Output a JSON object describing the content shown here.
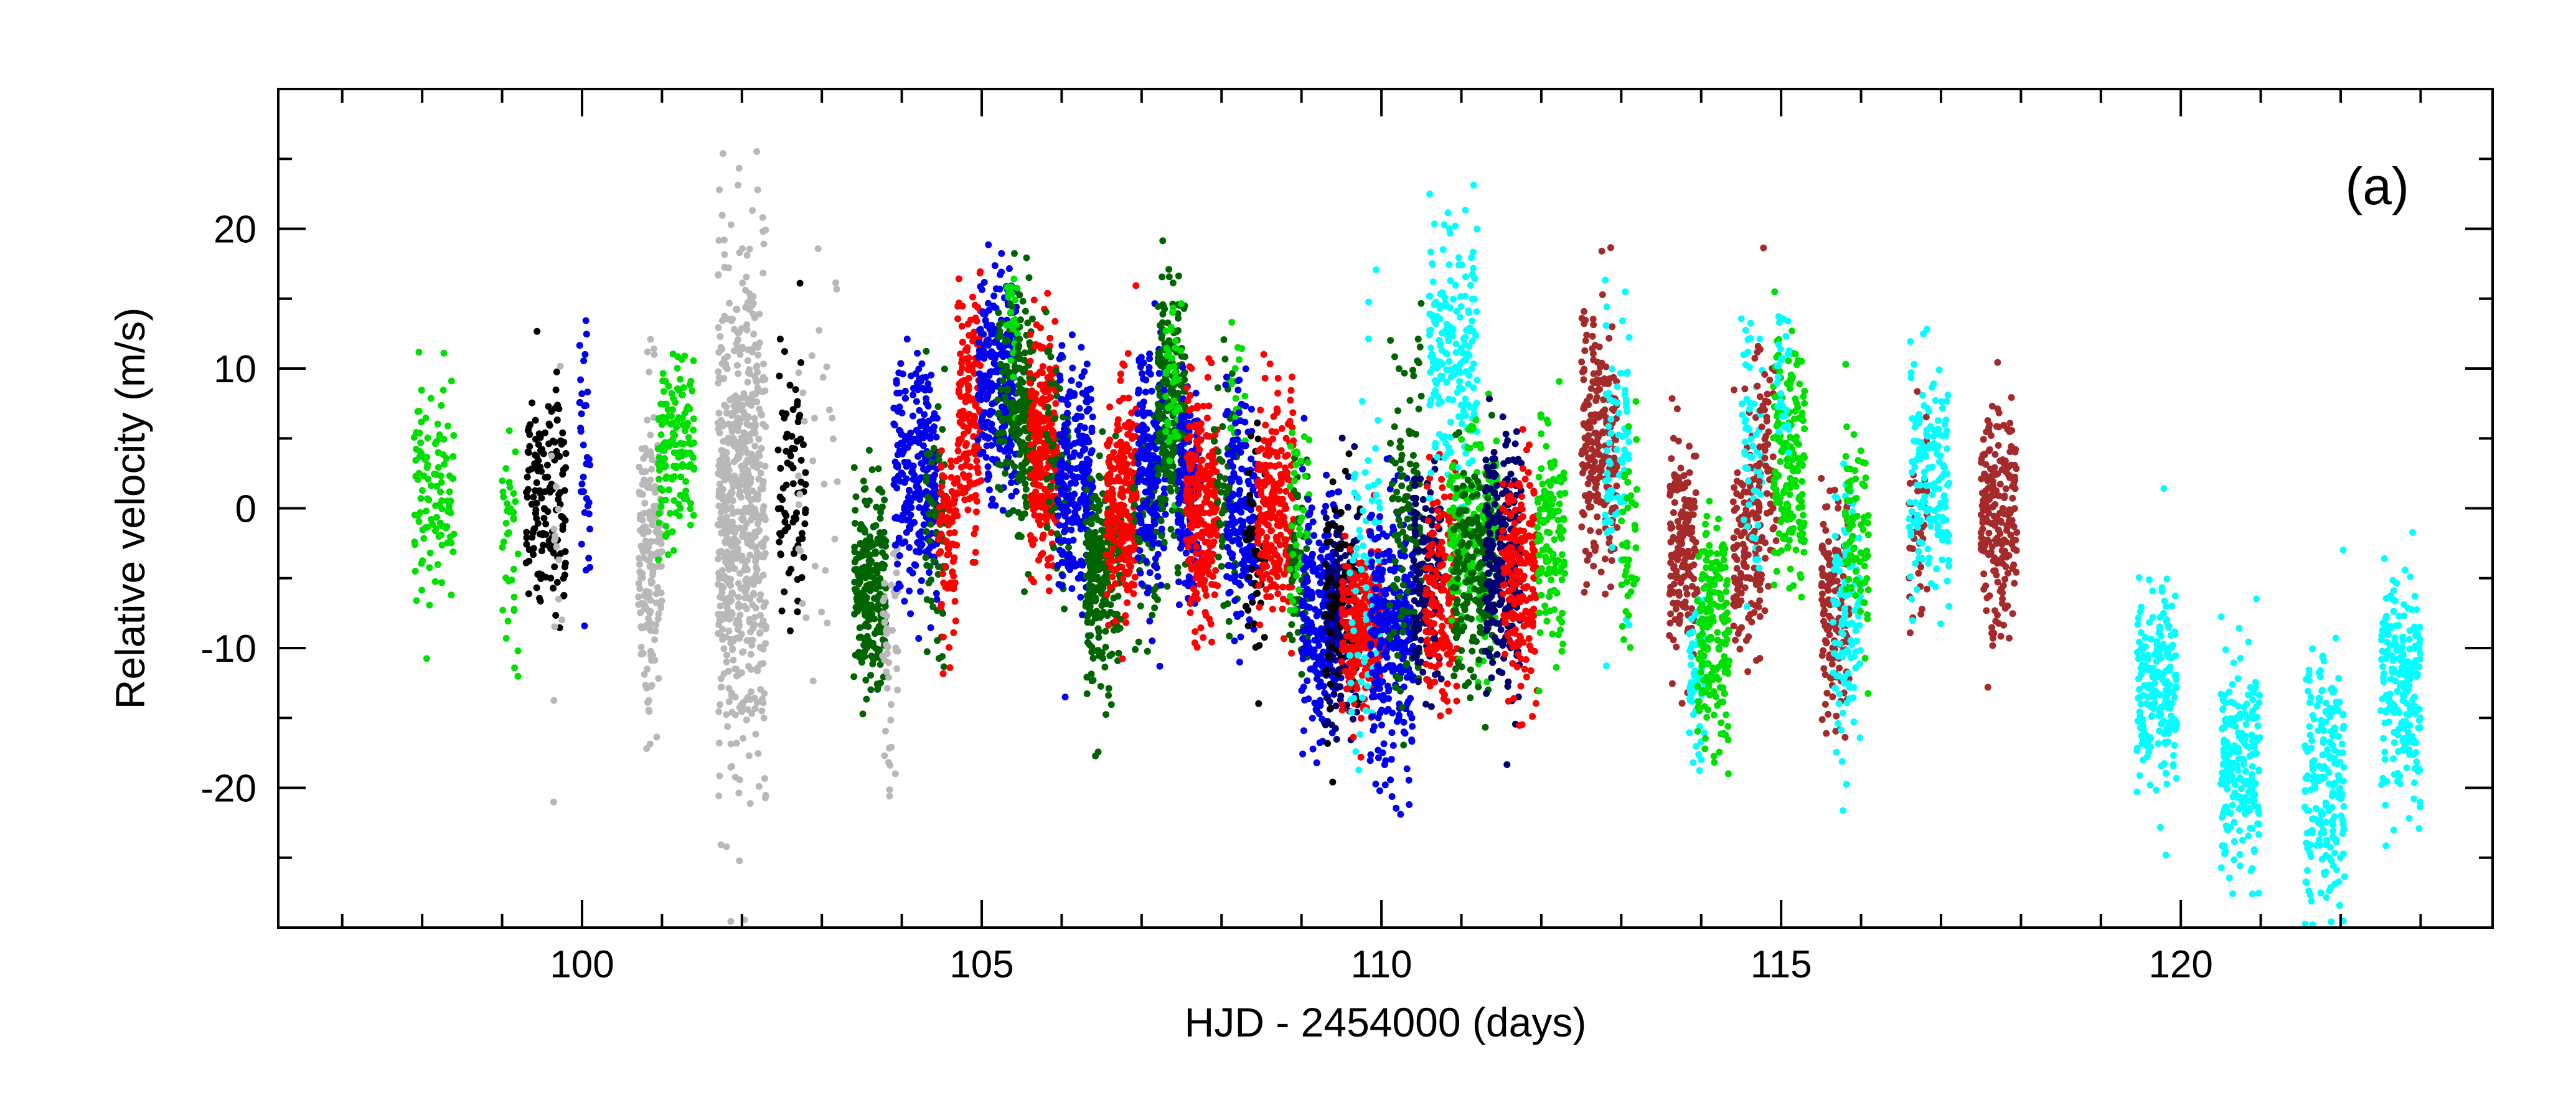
{
  "chart_data": {
    "type": "scatter",
    "xlabel": "HJD - 2454000 (days)",
    "ylabel": "Relative velocity (m/s)",
    "panel_label": "(a)",
    "xlim": [
      96.2,
      123.9
    ],
    "ylim": [
      -30,
      30
    ],
    "x_ticks": [
      100,
      105,
      110,
      115,
      120
    ],
    "x_tick_labels": [
      "100",
      "105",
      "110",
      "115",
      "120"
    ],
    "y_ticks": [
      -20,
      -10,
      0,
      10,
      20
    ],
    "y_tick_labels": [
      "-20",
      "-10",
      "0",
      "10",
      "20"
    ],
    "x_minor_step": 1,
    "y_minor_step": 5,
    "grid": false,
    "legend": "none",
    "colors": {
      "green": "#00e000",
      "black": "#000000",
      "blue": "#0000ee",
      "gray": "#b8b8b8",
      "darkgreen": "#006400",
      "red": "#ff0000",
      "navy": "#000070",
      "brown": "#a52a2a",
      "cyan": "#00ffff"
    },
    "clusters": [
      {
        "color": "green",
        "x": [
          97.9,
          98.4
        ],
        "mean": 1.5,
        "sd": 3.8,
        "n": 110
      },
      {
        "color": "green",
        "x": [
          99.0,
          99.2
        ],
        "mean": -2,
        "sd": 4.5,
        "n": 40
      },
      {
        "color": "black",
        "x": [
          99.3,
          99.8
        ],
        "mean": 0.5,
        "sd": 4.5,
        "n": 150
      },
      {
        "color": "gray",
        "x": [
          99.6,
          99.75
        ],
        "mean": -3,
        "sd": 8,
        "n": 15
      },
      {
        "color": "blue",
        "x": [
          99.95,
          100.1
        ],
        "mean": 3,
        "sd": 5,
        "n": 35
      },
      {
        "color": "gray",
        "x": [
          100.7,
          101.0
        ],
        "mean": -3,
        "sd": 5.5,
        "n": 180
      },
      {
        "color": "green",
        "x": [
          100.95,
          101.4
        ],
        "mean": 4.5,
        "sd": 3.5,
        "n": 150
      },
      {
        "color": "gray",
        "x": [
          101.7,
          102.3
        ],
        "mean": 0,
        "sd": 9,
        "n": 650
      },
      {
        "color": "black",
        "x": [
          102.45,
          102.8
        ],
        "mean": 1.5,
        "sd": 5,
        "n": 80
      },
      {
        "color": "gray",
        "x": [
          102.7,
          103.2
        ],
        "mean": 3,
        "sd": 7,
        "n": 30
      },
      {
        "color": "darkgreen",
        "x": [
          103.4,
          103.8
        ],
        "mean": -5,
        "sd": 3.5,
        "n": 250
      },
      {
        "color": "gray",
        "x": [
          103.75,
          103.95
        ],
        "mean": -10,
        "sd": 5,
        "n": 45
      },
      {
        "color": "blue",
        "x": [
          103.9,
          104.45
        ],
        "mean": 2.5,
        "sd": 4,
        "n": 260
      },
      {
        "color": "darkgreen",
        "x": [
          104.3,
          104.55
        ],
        "mean": -1,
        "sd": 4,
        "n": 70
      },
      {
        "color": "red",
        "x": [
          104.45,
          104.7
        ],
        "mean": -2,
        "sd": 3.5,
        "n": 90
      },
      {
        "color": "red",
        "x": [
          104.7,
          105.0
        ],
        "mean": 7,
        "sd": 4,
        "n": 160
      },
      {
        "color": "blue",
        "x": [
          104.95,
          105.45
        ],
        "mean": 9,
        "sd": 3.8,
        "n": 280
      },
      {
        "color": "darkgreen",
        "x": [
          105.2,
          105.5
        ],
        "mean": 8,
        "sd": 4,
        "n": 90
      },
      {
        "color": "green",
        "x": [
          105.3,
          105.45
        ],
        "mean": 13,
        "sd": 3,
        "n": 25
      },
      {
        "color": "darkgreen",
        "x": [
          105.45,
          105.65
        ],
        "mean": 7,
        "sd": 4,
        "n": 130
      },
      {
        "color": "red",
        "x": [
          105.6,
          105.95
        ],
        "mean": 4,
        "sd": 4,
        "n": 260
      },
      {
        "color": "darkgreen",
        "x": [
          105.8,
          106.1
        ],
        "mean": 3,
        "sd": 4,
        "n": 60
      },
      {
        "color": "blue",
        "x": [
          105.95,
          106.4
        ],
        "mean": 2,
        "sd": 4,
        "n": 240
      },
      {
        "color": "darkgreen",
        "x": [
          106.3,
          106.75
        ],
        "mean": -5,
        "sd": 4,
        "n": 260
      },
      {
        "color": "red",
        "x": [
          106.55,
          106.95
        ],
        "mean": 1,
        "sd": 4,
        "n": 240
      },
      {
        "color": "darkgreen",
        "x": [
          106.9,
          107.2
        ],
        "mean": -2,
        "sd": 4,
        "n": 60
      },
      {
        "color": "blue",
        "x": [
          106.95,
          107.3
        ],
        "mean": 3,
        "sd": 4,
        "n": 200
      },
      {
        "color": "darkgreen",
        "x": [
          107.2,
          107.55
        ],
        "mean": 7,
        "sd": 4.5,
        "n": 230
      },
      {
        "color": "green",
        "x": [
          107.3,
          107.5
        ],
        "mean": 9,
        "sd": 3,
        "n": 40
      },
      {
        "color": "blue",
        "x": [
          107.45,
          107.75
        ],
        "mean": 1,
        "sd": 4,
        "n": 150
      },
      {
        "color": "red",
        "x": [
          107.55,
          107.95
        ],
        "mean": 0,
        "sd": 4,
        "n": 260
      },
      {
        "color": "darkgreen",
        "x": [
          107.9,
          108.2
        ],
        "mean": 1,
        "sd": 4,
        "n": 60
      },
      {
        "color": "green",
        "x": [
          108.1,
          108.3
        ],
        "mean": 8,
        "sd": 2,
        "n": 20
      },
      {
        "color": "blue",
        "x": [
          108.05,
          108.45
        ],
        "mean": 0,
        "sd": 4,
        "n": 170
      },
      {
        "color": "black",
        "x": [
          108.3,
          108.55
        ],
        "mean": -3,
        "sd": 5,
        "n": 50
      },
      {
        "color": "red",
        "x": [
          108.45,
          108.9
        ],
        "mean": 0,
        "sd": 4,
        "n": 230
      },
      {
        "color": "darkgreen",
        "x": [
          108.85,
          109.1
        ],
        "mean": -4,
        "sd": 4,
        "n": 70
      },
      {
        "color": "green",
        "x": [
          108.85,
          109.1
        ],
        "mean": -1,
        "sd": 4,
        "n": 40
      },
      {
        "color": "blue",
        "x": [
          109.0,
          109.5
        ],
        "mean": -8,
        "sd": 4,
        "n": 240
      },
      {
        "color": "navy",
        "x": [
          109.3,
          109.7
        ],
        "mean": -7,
        "sd": 4,
        "n": 160
      },
      {
        "color": "black",
        "x": [
          109.3,
          109.75
        ],
        "mean": -7,
        "sd": 5,
        "n": 70
      },
      {
        "color": "red",
        "x": [
          109.5,
          110.0
        ],
        "mean": -9,
        "sd": 3,
        "n": 260
      },
      {
        "color": "cyan",
        "x": [
          109.6,
          110.0
        ],
        "mean": -5,
        "sd": 7,
        "n": 70
      },
      {
        "color": "blue",
        "x": [
          109.85,
          110.4
        ],
        "mean": -9,
        "sd": 5,
        "n": 300
      },
      {
        "color": "darkgreen",
        "x": [
          110.1,
          110.5
        ],
        "mean": -1,
        "sd": 6,
        "n": 130
      },
      {
        "color": "navy",
        "x": [
          110.4,
          110.75
        ],
        "mean": -5,
        "sd": 4,
        "n": 160
      },
      {
        "color": "red",
        "x": [
          110.55,
          110.95
        ],
        "mean": -6,
        "sd": 4,
        "n": 160
      },
      {
        "color": "cyan",
        "x": [
          110.6,
          111.2
        ],
        "mean": 11,
        "sd": 5,
        "n": 200
      },
      {
        "color": "green",
        "x": [
          110.85,
          111.45
        ],
        "mean": -2,
        "sd": 4,
        "n": 200
      },
      {
        "color": "darkgreen",
        "x": [
          110.9,
          111.4
        ],
        "mean": -5,
        "sd": 4,
        "n": 180
      },
      {
        "color": "navy",
        "x": [
          111.3,
          111.75
        ],
        "mean": -4,
        "sd": 4.5,
        "n": 260
      },
      {
        "color": "red",
        "x": [
          111.5,
          111.95
        ],
        "mean": -5,
        "sd": 4,
        "n": 200
      },
      {
        "color": "green",
        "x": [
          111.95,
          112.3
        ],
        "mean": -2,
        "sd": 4,
        "n": 130
      },
      {
        "color": "brown",
        "x": [
          112.5,
          112.95
        ],
        "mean": 4,
        "sd": 4.5,
        "n": 220
      },
      {
        "color": "cyan",
        "x": [
          112.8,
          113.1
        ],
        "mean": 5,
        "sd": 5,
        "n": 80
      },
      {
        "color": "green",
        "x": [
          113.0,
          113.2
        ],
        "mean": -4,
        "sd": 4,
        "n": 40
      },
      {
        "color": "brown",
        "x": [
          113.6,
          113.95
        ],
        "mean": -3,
        "sd": 4,
        "n": 170
      },
      {
        "color": "cyan",
        "x": [
          113.85,
          114.05
        ],
        "mean": -12,
        "sd": 3,
        "n": 60
      },
      {
        "color": "green",
        "x": [
          113.95,
          114.35
        ],
        "mean": -9,
        "sd": 4,
        "n": 190
      },
      {
        "color": "brown",
        "x": [
          114.4,
          114.75
        ],
        "mean": -2,
        "sd": 4,
        "n": 150
      },
      {
        "color": "cyan",
        "x": [
          114.5,
          114.8
        ],
        "mean": 3,
        "sd": 6,
        "n": 60
      },
      {
        "color": "brown",
        "x": [
          114.7,
          114.95
        ],
        "mean": 4,
        "sd": 5,
        "n": 60
      },
      {
        "color": "green",
        "x": [
          114.9,
          115.3
        ],
        "mean": 3,
        "sd": 4,
        "n": 180
      },
      {
        "color": "cyan",
        "x": [
          114.95,
          115.1
        ],
        "mean": 10,
        "sd": 3,
        "n": 30
      },
      {
        "color": "brown",
        "x": [
          115.5,
          115.85
        ],
        "mean": -7,
        "sd": 4,
        "n": 160
      },
      {
        "color": "cyan",
        "x": [
          115.65,
          116.0
        ],
        "mean": -8,
        "sd": 5,
        "n": 110
      },
      {
        "color": "green",
        "x": [
          115.8,
          116.1
        ],
        "mean": -3,
        "sd": 4,
        "n": 80
      },
      {
        "color": "brown",
        "x": [
          116.6,
          116.85
        ],
        "mean": 0,
        "sd": 4,
        "n": 40
      },
      {
        "color": "cyan",
        "x": [
          116.6,
          117.1
        ],
        "mean": 2,
        "sd": 4,
        "n": 160
      },
      {
        "color": "brown",
        "x": [
          117.5,
          117.95
        ],
        "mean": -1,
        "sd": 4,
        "n": 220
      },
      {
        "color": "cyan",
        "x": [
          119.45,
          119.95
        ],
        "mean": -13,
        "sd": 4,
        "n": 210
      },
      {
        "color": "cyan",
        "x": [
          120.5,
          121.0
        ],
        "mean": -18,
        "sd": 4,
        "n": 210
      },
      {
        "color": "cyan",
        "x": [
          121.55,
          122.05
        ],
        "mean": -20,
        "sd": 4.5,
        "n": 210
      },
      {
        "color": "cyan",
        "x": [
          122.5,
          123.0
        ],
        "mean": -13,
        "sd": 4,
        "n": 210
      }
    ]
  }
}
